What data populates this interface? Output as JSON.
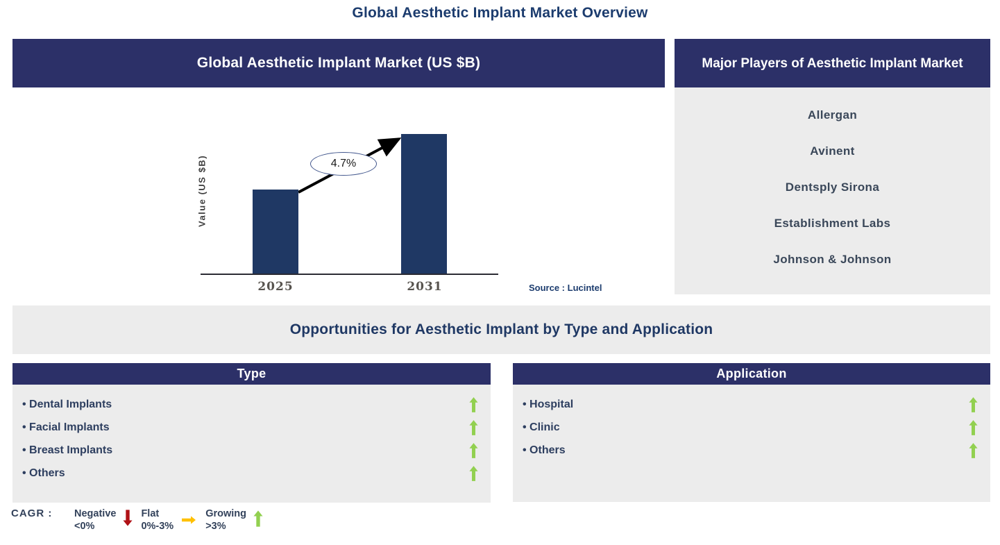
{
  "page": {
    "title": "Global Aesthetic Implant Market Overview"
  },
  "chart_panel": {
    "header": "Global Aesthetic Implant Market (US $B)",
    "source": "Source : Lucintel"
  },
  "chart_data": {
    "type": "bar",
    "title": "Global Aesthetic Implant Market (US $B)",
    "categories": [
      "2025",
      "2031"
    ],
    "values_relative": [
      0.6,
      1.0
    ],
    "values_note": "No numeric axis scale shown; bar heights are relative illustration of market growth",
    "ylabel": "Value (US $B)",
    "xlabel": "",
    "cagr_annotation": "4.7%",
    "bar_color": "#1F3864",
    "grid": "off",
    "legend": "none"
  },
  "players_panel": {
    "header": "Major Players of Aesthetic Implant Market",
    "companies": [
      "Allergan",
      "Avinent",
      "Dentsply Sirona",
      "Establishment Labs",
      "Johnson & Johnson"
    ]
  },
  "opportunities": {
    "header": "Opportunities for Aesthetic Implant by Type and Application"
  },
  "type_panel": {
    "header": "Type",
    "items": [
      {
        "label": "Dental Implants",
        "trend": "growing"
      },
      {
        "label": "Facial Implants",
        "trend": "growing"
      },
      {
        "label": "Breast Implants",
        "trend": "growing"
      },
      {
        "label": "Others",
        "trend": "growing"
      }
    ]
  },
  "application_panel": {
    "header": "Application",
    "items": [
      {
        "label": "Hospital",
        "trend": "growing"
      },
      {
        "label": "Clinic",
        "trend": "growing"
      },
      {
        "label": "Others",
        "trend": "growing"
      }
    ]
  },
  "cagr_legend": {
    "prefix": "CAGR :",
    "entries": [
      {
        "label": "Negative",
        "range": "<0%",
        "icon": "down-arrow",
        "color": "#B01116"
      },
      {
        "label": "Flat",
        "range": "0%-3%",
        "icon": "right-arrow",
        "color": "#FFC000"
      },
      {
        "label": "Growing",
        "range": ">3%",
        "icon": "up-arrow",
        "color": "#92D050"
      }
    ]
  },
  "colors": {
    "header_navy": "#2C3068",
    "bar_navy": "#1F3864",
    "panel_gray": "#ECECEC",
    "title_navy": "#1C3C6E",
    "growing_green": "#92D050",
    "negative_red": "#B01116",
    "flat_orange": "#FFC000"
  }
}
